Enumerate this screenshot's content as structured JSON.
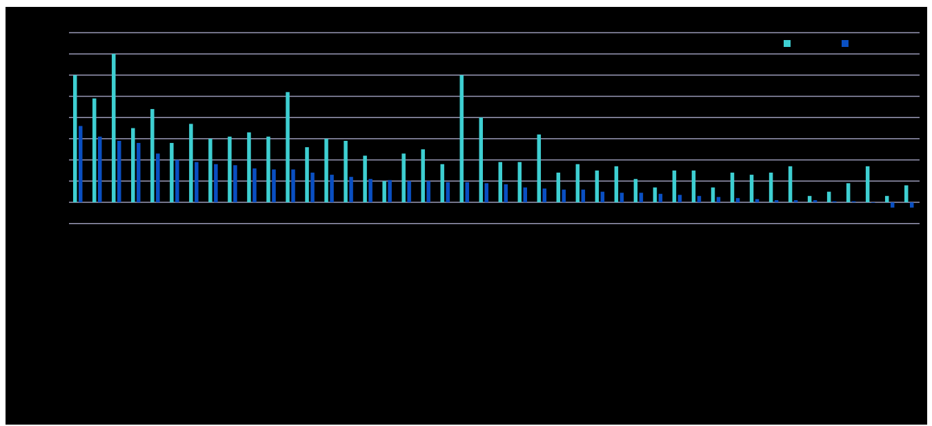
{
  "chart_data": {
    "type": "bar",
    "title": "",
    "xlabel": "",
    "ylabel": "",
    "grid": true,
    "legend_position": "top-right",
    "y_range": [
      -1,
      8
    ],
    "gridline_values": [
      -1,
      0,
      1,
      2,
      3,
      4,
      5,
      6,
      7,
      8
    ],
    "categories": [
      "",
      "",
      "",
      "",
      "",
      "",
      "",
      "",
      "",
      "",
      "",
      "",
      "",
      "",
      "",
      "",
      "",
      "",
      "",
      "",
      "",
      "",
      "",
      "",
      "",
      "",
      "",
      "",
      "",
      "",
      "",
      "",
      "",
      "",
      "",
      "",
      "",
      "",
      "",
      "",
      "",
      "",
      "",
      ""
    ],
    "series": [
      {
        "name": "",
        "color": "#3ecfd2",
        "values": [
          6.0,
          4.9,
          7.0,
          3.5,
          4.4,
          2.8,
          3.7,
          3.0,
          3.1,
          3.3,
          3.1,
          5.2,
          2.6,
          3.0,
          2.9,
          2.2,
          1.0,
          2.3,
          2.5,
          1.8,
          6.0,
          4.0,
          1.9,
          1.9,
          3.2,
          1.4,
          1.8,
          1.5,
          1.7,
          1.1,
          0.7,
          1.5,
          1.5,
          0.7,
          1.4,
          1.3,
          1.4,
          1.7,
          0.3,
          0.5,
          0.9,
          1.7,
          0.3,
          0.8
        ]
      },
      {
        "name": "",
        "color": "#0a4fc2",
        "values": [
          3.6,
          3.1,
          2.9,
          2.8,
          2.3,
          2.0,
          1.9,
          1.8,
          1.75,
          1.6,
          1.55,
          1.55,
          1.4,
          1.3,
          1.2,
          1.1,
          1.05,
          1.0,
          1.0,
          0.95,
          0.95,
          0.9,
          0.85,
          0.7,
          0.65,
          0.6,
          0.6,
          0.5,
          0.45,
          0.45,
          0.4,
          0.35,
          0.3,
          0.25,
          0.2,
          0.15,
          0.1,
          0.1,
          0.1,
          0.05,
          0.05,
          0.0,
          -0.25,
          -0.25
        ]
      }
    ]
  }
}
